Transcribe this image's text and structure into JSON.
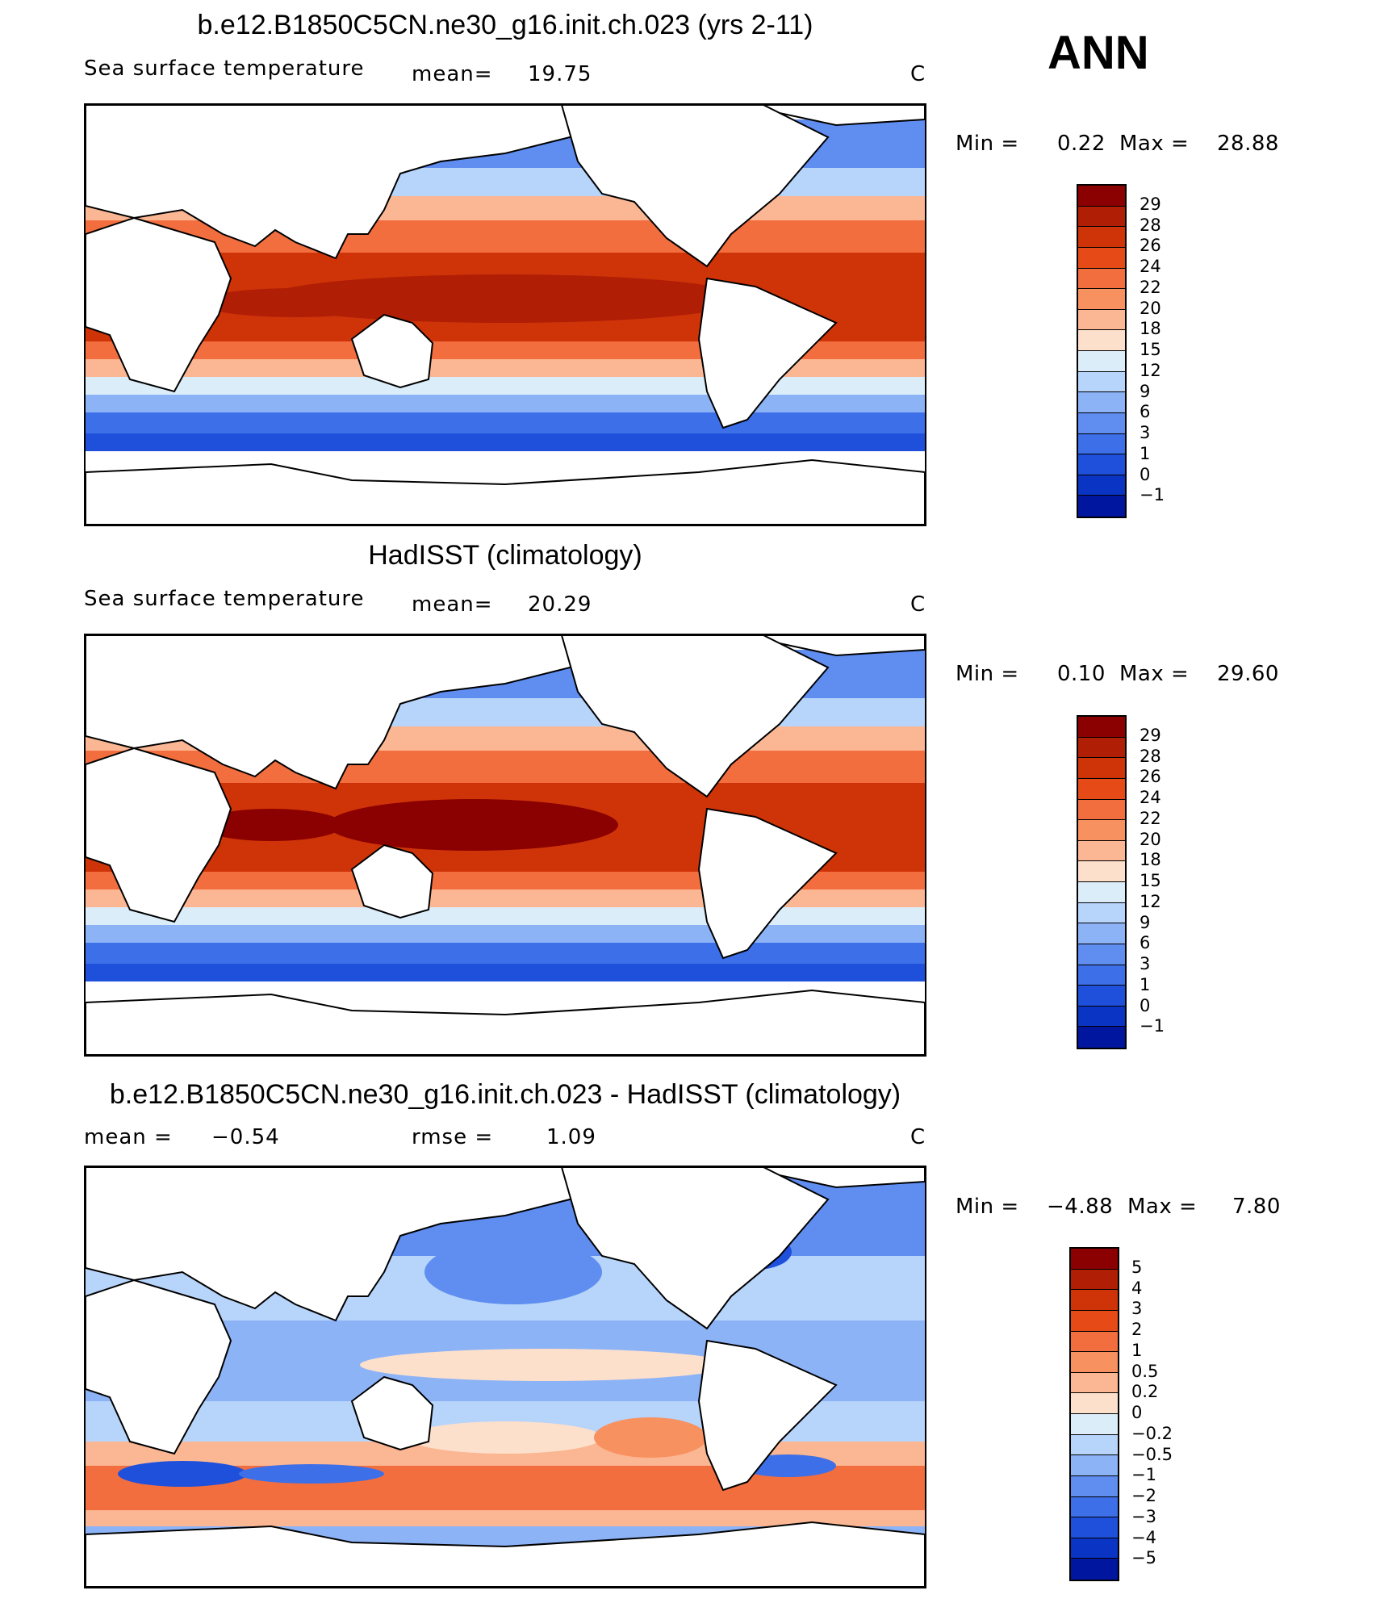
{
  "season": "ANN",
  "units": "C",
  "panels": [
    {
      "id": "model",
      "title": "b.e12.B1850C5CN.ne30_g16.init.ch.023 (yrs 2-11)",
      "field": "Sea surface temperature",
      "stat_label": "mean=",
      "stat_value": "19.75",
      "min_label": "Min =",
      "min_value": "0.22",
      "max_label": "Max =",
      "max_value": "28.88",
      "colorbar_labels": [
        "29",
        "28",
        "26",
        "24",
        "22",
        "20",
        "18",
        "15",
        "12",
        "9",
        "6",
        "3",
        "1",
        "0",
        "−1"
      ],
      "colorbar_colors": [
        "#8b0000",
        "#b01e06",
        "#cf3408",
        "#e64a17",
        "#f26e3e",
        "#f7915f",
        "#fbb693",
        "#fde0cb",
        "#dcedfa",
        "#b7d4fb",
        "#8db3f7",
        "#5f8df0",
        "#3d6fe8",
        "#1f50dc",
        "#0a34c4",
        "#00169e"
      ]
    },
    {
      "id": "obs",
      "title": "HadISST (climatology)",
      "field": "Sea surface temperature",
      "stat_label": "mean=",
      "stat_value": "20.29",
      "min_label": "Min =",
      "min_value": "0.10",
      "max_label": "Max =",
      "max_value": "29.60",
      "colorbar_labels": [
        "29",
        "28",
        "26",
        "24",
        "22",
        "20",
        "18",
        "15",
        "12",
        "9",
        "6",
        "3",
        "1",
        "0",
        "−1"
      ],
      "colorbar_colors": [
        "#8b0000",
        "#b01e06",
        "#cf3408",
        "#e64a17",
        "#f26e3e",
        "#f7915f",
        "#fbb693",
        "#fde0cb",
        "#dcedfa",
        "#b7d4fb",
        "#8db3f7",
        "#5f8df0",
        "#3d6fe8",
        "#1f50dc",
        "#0a34c4",
        "#00169e"
      ]
    },
    {
      "id": "diff",
      "title": "b.e12.B1850C5CN.ne30_g16.init.ch.023 - HadISST (climatology)",
      "stat_label": "mean =",
      "stat_value": "−0.54",
      "rmse_label": "rmse =",
      "rmse_value": "1.09",
      "min_label": "Min =",
      "min_value": "−4.88",
      "max_label": "Max =",
      "max_value": "7.80",
      "colorbar_labels": [
        "5",
        "4",
        "3",
        "2",
        "1",
        "0.5",
        "0.2",
        "0",
        "−0.2",
        "−0.5",
        "−1",
        "−2",
        "−3",
        "−4",
        "−5"
      ],
      "colorbar_colors": [
        "#8b0000",
        "#b01e06",
        "#cf3408",
        "#e64a17",
        "#f26e3e",
        "#f7915f",
        "#fbb693",
        "#fde0cb",
        "#dcedfa",
        "#b7d4fb",
        "#8db3f7",
        "#5f8df0",
        "#3d6fe8",
        "#1f50dc",
        "#0a34c4",
        "#00169e"
      ]
    }
  ]
}
